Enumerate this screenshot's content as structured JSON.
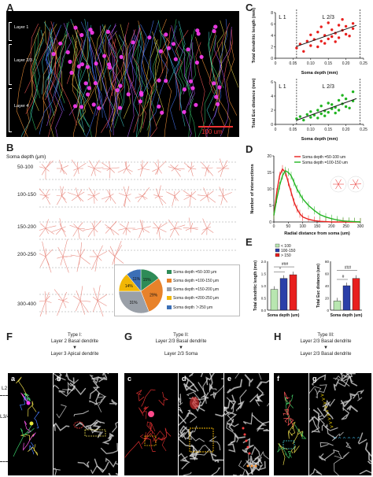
{
  "panels": {
    "A": {
      "letter": "A",
      "layers": [
        "Layer 1",
        "Layer 2/3",
        "Layer 4"
      ],
      "scale": "100 um"
    },
    "B": {
      "letter": "B",
      "title": "Soma depth (μm)",
      "depths": [
        "50-100",
        "100-150",
        "150-200",
        "200-250",
        "300-400"
      ],
      "pie": {
        "labels": [
          "Soma depth =50-100 μm",
          "Soma depth =100-150 μm",
          "Soma depth =150-200 μm",
          "Soma depth =200-250 μm",
          "Soma depth ＞250 μm"
        ],
        "values": [
          15,
          29,
          31,
          14,
          11
        ],
        "pct_labels": [
          "15%",
          "29%",
          "31%",
          "14%",
          "11%"
        ],
        "colors": [
          "#2e8b57",
          "#e8822a",
          "#9aa0a8",
          "#f2b705",
          "#3b6fb6"
        ]
      }
    },
    "C": {
      "letter": "C",
      "top_ylabel": "Total dendritic length (mm)",
      "bottom_ylabel": "Total Euc distance (mm)",
      "xlabel": "Soma depth (mm)",
      "l1": "L 1",
      "l23": "L 2/3",
      "xticks": [
        "0",
        "0.05",
        "0.10",
        "0.15",
        "0.20",
        "0.25"
      ],
      "top_yticks": [
        "0",
        "2",
        "4",
        "6",
        "8"
      ],
      "bottom_yticks": [
        "0",
        "2",
        "4",
        "6"
      ]
    },
    "D": {
      "letter": "D",
      "ylabel": "Number of intersections",
      "xlabel": "Radial distance from soma (um)",
      "xticks": [
        "0",
        "50",
        "100",
        "150",
        "200",
        "250",
        "300"
      ],
      "yticks": [
        "0",
        "5",
        "10",
        "15",
        "20"
      ],
      "legend": [
        "Soma depth =50-100 um",
        "Soma depth =100-150 um"
      ]
    },
    "E": {
      "letter": "E",
      "legend": [
        "< 100",
        "100-150",
        "> 150"
      ],
      "left_ylabel": "Total dendritic length (mm)",
      "right_ylabel": "Total Euc distance (um)",
      "xlabel": "Soma depth (um)",
      "sig_left": [
        "*",
        "###"
      ],
      "sig_right": [
        "#",
        "###"
      ],
      "left_yticks": [
        "0.0",
        "0.5",
        "1.0",
        "1.5",
        "2.0"
      ],
      "right_yticks": [
        "0",
        "20",
        "40",
        "60",
        "80"
      ]
    },
    "F": {
      "letter": "F",
      "type": "Type I:",
      "line1": "Layer 2 Basal dendrite",
      "line2": "Layer 3 Apical dendrite",
      "sub": [
        "a",
        "b"
      ],
      "depth_marks": [
        "L2",
        "L3/4"
      ]
    },
    "G": {
      "letter": "G",
      "type": "Type II:",
      "line1": "Layer 2/3 Basal dendrite",
      "line2": "Layer 2/3 Soma",
      "sub": [
        "c",
        "d",
        "e"
      ]
    },
    "H": {
      "letter": "H",
      "type": "Type III:",
      "line1": "Layer 2/3 Basal dendrite",
      "line2": "Layer 2/3 Basal dendrite",
      "sub": [
        "f",
        "g"
      ]
    }
  },
  "chart_data": [
    {
      "type": "scatter",
      "title": "",
      "xlabel": "Soma depth (mm)",
      "ylabel": "Total dendritic length (mm)",
      "xlim": [
        0,
        0.25
      ],
      "ylim": [
        0,
        8
      ],
      "series": [
        {
          "x": [
            0.06,
            0.07,
            0.08,
            0.09,
            0.1,
            0.1,
            0.11,
            0.12,
            0.12,
            0.13,
            0.13,
            0.14,
            0.14,
            0.15,
            0.15,
            0.16,
            0.16,
            0.17,
            0.17,
            0.18,
            0.18,
            0.19,
            0.19,
            0.2,
            0.2,
            0.21,
            0.22,
            0.22
          ],
          "y": [
            1.8,
            2.5,
            1.2,
            3.0,
            2.2,
            4.1,
            3.3,
            2.0,
            4.6,
            3.0,
            5.5,
            2.6,
            4.0,
            3.4,
            6.2,
            3.8,
            5.0,
            2.9,
            4.4,
            5.8,
            3.6,
            4.9,
            6.8,
            4.2,
            5.6,
            3.9,
            5.2,
            6.1
          ]
        }
      ]
    },
    {
      "type": "scatter",
      "title": "",
      "xlabel": "Soma depth (mm)",
      "ylabel": "Total Euc distance (mm)",
      "xlim": [
        0,
        0.25
      ],
      "ylim": [
        0,
        6
      ],
      "series": [
        {
          "x": [
            0.06,
            0.07,
            0.08,
            0.09,
            0.1,
            0.1,
            0.11,
            0.12,
            0.12,
            0.13,
            0.13,
            0.14,
            0.14,
            0.15,
            0.15,
            0.16,
            0.16,
            0.17,
            0.17,
            0.18,
            0.18,
            0.19,
            0.19,
            0.2,
            0.2,
            0.21,
            0.22,
            0.22
          ],
          "y": [
            0.8,
            1.1,
            0.6,
            1.4,
            1.0,
            1.8,
            1.3,
            0.9,
            2.0,
            1.5,
            2.6,
            1.2,
            1.9,
            1.7,
            3.0,
            2.2,
            2.8,
            1.6,
            2.4,
            3.4,
            2.0,
            2.9,
            4.1,
            2.5,
            3.6,
            2.3,
            3.3,
            4.6
          ]
        }
      ]
    },
    {
      "type": "line",
      "title": "",
      "xlabel": "Radial distance from soma (um)",
      "ylabel": "Number of intersections",
      "xlim": [
        0,
        300
      ],
      "ylim": [
        0,
        20
      ],
      "x": [
        0,
        10,
        20,
        30,
        40,
        50,
        60,
        70,
        80,
        90,
        100,
        120,
        140,
        160,
        180,
        200,
        220,
        240,
        260,
        280,
        300
      ],
      "series": [
        {
          "name": "Soma depth =50-100 um",
          "values": [
            2,
            9,
            14,
            16,
            15,
            12,
            9,
            6,
            4,
            2.5,
            1.5,
            0.8,
            0.4,
            0.2,
            0.1,
            0,
            0,
            0,
            0,
            0,
            0
          ]
        },
        {
          "name": "Soma depth =100-150 um",
          "values": [
            2,
            7,
            11,
            14,
            15.5,
            15,
            14,
            12,
            10,
            8.5,
            7,
            5,
            3.5,
            2.2,
            1.5,
            1,
            0.6,
            0.3,
            0.2,
            0.1,
            0
          ]
        }
      ]
    },
    {
      "type": "bar",
      "title": "",
      "xlabel": "Soma depth (um)",
      "ylabel": "Total dendritic length (mm)",
      "categories": [
        "< 100",
        "100-150",
        "> 150"
      ],
      "values": [
        0.85,
        1.3,
        1.45
      ],
      "ylim": [
        0,
        2.0
      ]
    },
    {
      "type": "bar",
      "title": "",
      "xlabel": "Soma depth (um)",
      "ylabel": "Total Euc distance (um)",
      "categories": [
        "< 100",
        "100-150",
        "> 150"
      ],
      "values": [
        15,
        40,
        52
      ],
      "ylim": [
        0,
        80
      ]
    }
  ]
}
